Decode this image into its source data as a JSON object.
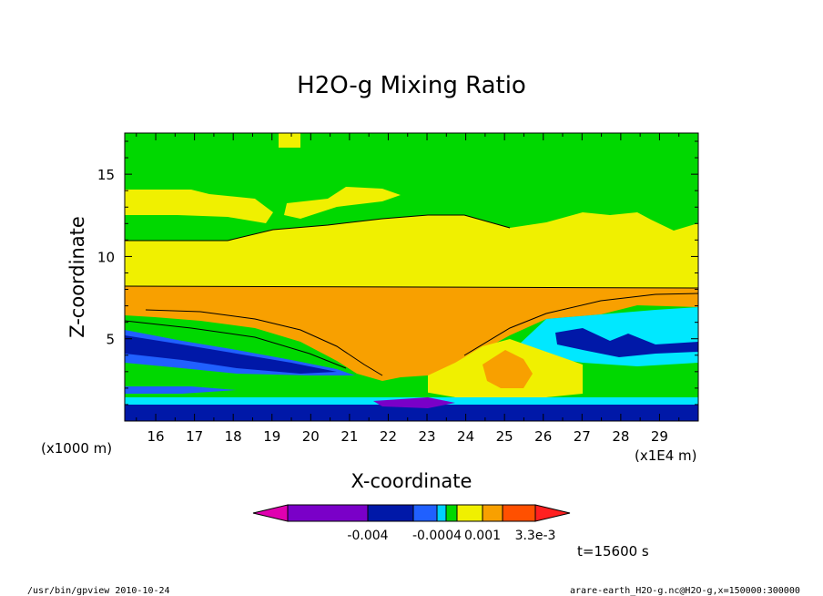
{
  "chart_data": {
    "type": "heatmap",
    "title": "H2O-g Mixing Ratio",
    "xlabel": "X-coordinate",
    "ylabel": "Z-coordinate",
    "x_units_left": "(x1000 m)",
    "x_units_right": "(x1E4 m)",
    "x_ticks": [
      "16",
      "17",
      "18",
      "19",
      "20",
      "21",
      "22",
      "23",
      "24",
      "25",
      "26",
      "27",
      "28",
      "29"
    ],
    "y_ticks": [
      "5",
      "10",
      "15"
    ],
    "xlim": [
      15.2,
      30
    ],
    "ylim": [
      0,
      17.5
    ],
    "colorbar_labels": [
      "-0.004",
      "-0.0004",
      "0.001",
      "3.3e-3"
    ],
    "colorbar_colors": [
      "#7a00c8",
      "#0018a8",
      "#2060ff",
      "#00d0ff",
      "#00d800",
      "#f0f000",
      "#f8a000",
      "#ff5000"
    ],
    "time_label": "t=15600 s",
    "grid": false
  },
  "footer": {
    "left": "/usr/bin/gpview  2010-10-24",
    "right": "arare-earth_H2O-g.nc@H2O-g,x=150000:300000"
  }
}
